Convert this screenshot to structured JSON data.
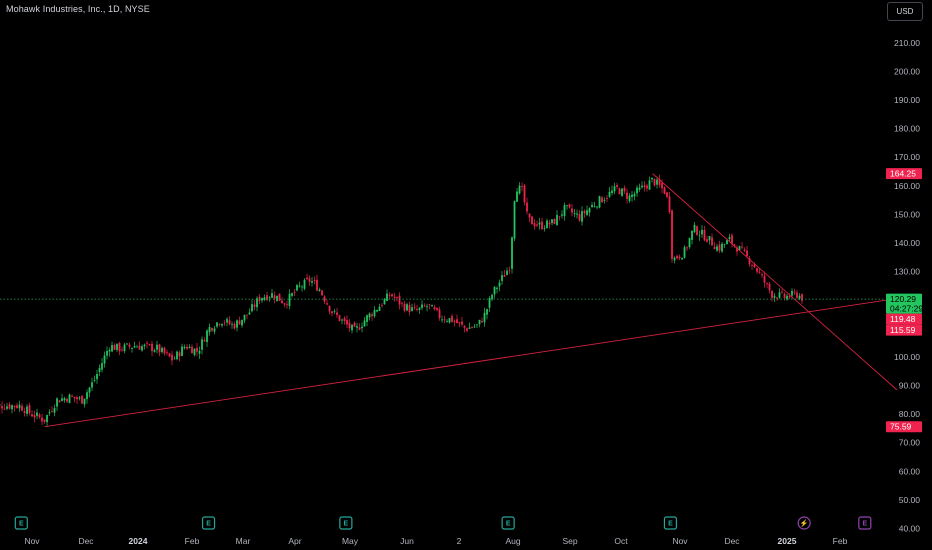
{
  "header": {
    "title": "Mohawk Industries, Inc., 1D, NYSE",
    "currency": "USD"
  },
  "colors": {
    "background": "#000000",
    "up": "#22c55e",
    "down": "#f0234f",
    "trendline": "#d62240",
    "price_line": "#1fae5a",
    "earnings_event": "#26a69a",
    "dividend_event": "#8e44ad"
  },
  "chart_data": {
    "type": "candlestick",
    "title": "Mohawk Industries, Inc., 1D, NYSE",
    "xlabel": "",
    "ylabel": "",
    "ylim": [
      40,
      215
    ],
    "grid": false,
    "y_ticks": [
      "210.00",
      "200.00",
      "190.00",
      "180.00",
      "170.00",
      "160.00",
      "150.00",
      "140.00",
      "130.00",
      "120.00",
      "110.00",
      "100.00",
      "90.00",
      "80.00",
      "70.00",
      "60.00",
      "50.00",
      "40.00"
    ],
    "x_ticks": [
      "Nov",
      "Dec",
      "2024",
      "Feb",
      "Mar",
      "Apr",
      "May",
      "Jun",
      "2",
      "Aug",
      "Sep",
      "Oct",
      "Nov",
      "Dec",
      "2025",
      "Feb"
    ],
    "approx_close_path": [
      [
        "2023-10-25",
        83
      ],
      [
        "2023-11-01",
        80
      ],
      [
        "2023-11-08",
        78
      ],
      [
        "2023-11-15",
        85
      ],
      [
        "2023-11-22",
        86
      ],
      [
        "2023-11-29",
        85
      ],
      [
        "2023-12-06",
        92
      ],
      [
        "2023-12-13",
        102
      ],
      [
        "2023-12-14",
        104
      ],
      [
        "2023-12-20",
        103
      ],
      [
        "2023-12-29",
        104
      ],
      [
        "2024-01-10",
        103
      ],
      [
        "2024-01-19",
        99
      ],
      [
        "2024-01-26",
        104
      ],
      [
        "2024-02-02",
        102
      ],
      [
        "2024-02-08",
        110
      ],
      [
        "2024-02-15",
        113
      ],
      [
        "2024-02-22",
        111
      ],
      [
        "2024-03-01",
        115
      ],
      [
        "2024-03-08",
        121
      ],
      [
        "2024-03-15",
        122
      ],
      [
        "2024-03-22",
        119
      ],
      [
        "2024-03-29",
        124
      ],
      [
        "2024-04-05",
        127
      ],
      [
        "2024-04-10",
        124
      ],
      [
        "2024-04-17",
        116
      ],
      [
        "2024-04-24",
        112
      ],
      [
        "2024-04-30",
        109
      ],
      [
        "2024-05-07",
        114
      ],
      [
        "2024-05-14",
        118
      ],
      [
        "2024-05-20",
        122
      ],
      [
        "2024-05-27",
        118
      ],
      [
        "2024-06-03",
        116
      ],
      [
        "2024-06-10",
        118
      ],
      [
        "2024-06-17",
        114
      ],
      [
        "2024-06-24",
        113
      ],
      [
        "2024-07-01",
        110
      ],
      [
        "2024-07-08",
        111
      ],
      [
        "2024-07-12",
        115
      ],
      [
        "2024-07-16",
        122
      ],
      [
        "2024-07-22",
        128
      ],
      [
        "2024-07-26",
        132
      ],
      [
        "2024-07-29",
        160
      ],
      [
        "2024-08-02",
        158
      ],
      [
        "2024-08-05",
        148
      ],
      [
        "2024-08-12",
        146
      ],
      [
        "2024-08-19",
        147
      ],
      [
        "2024-08-26",
        152
      ],
      [
        "2024-09-03",
        149
      ],
      [
        "2024-09-10",
        153
      ],
      [
        "2024-09-17",
        156
      ],
      [
        "2024-09-24",
        159
      ],
      [
        "2024-10-01",
        156
      ],
      [
        "2024-10-08",
        159
      ],
      [
        "2024-10-14",
        162
      ],
      [
        "2024-10-21",
        158
      ],
      [
        "2024-10-24",
        151
      ],
      [
        "2024-10-25",
        134
      ],
      [
        "2024-11-01",
        137
      ],
      [
        "2024-11-06",
        145
      ],
      [
        "2024-11-13",
        142
      ],
      [
        "2024-11-20",
        138
      ],
      [
        "2024-11-26",
        141
      ],
      [
        "2024-12-03",
        137
      ],
      [
        "2024-12-10",
        132
      ],
      [
        "2024-12-17",
        125
      ],
      [
        "2024-12-20",
        122
      ],
      [
        "2024-12-27",
        121
      ],
      [
        "2025-01-03",
        122
      ],
      [
        "2025-01-07",
        120.29
      ]
    ],
    "trendlines": [
      {
        "from": [
          "2023-11-08",
          75.59
        ],
        "to": [
          "2025-02-28",
          120.5
        ]
      },
      {
        "from": [
          "2024-10-14",
          164.25
        ],
        "to": [
          "2025-02-28",
          88.5
        ]
      }
    ],
    "price_tags": [
      {
        "label": "164.25",
        "value": 164.25,
        "kind": "level"
      },
      {
        "label": "120.29",
        "sub": "04:27:29",
        "value": 120.29,
        "kind": "last"
      },
      {
        "label": "119.48",
        "value": 119.48,
        "kind": "level"
      },
      {
        "label": "115.59",
        "value": 115.59,
        "kind": "level"
      },
      {
        "label": "75.59",
        "value": 75.59,
        "kind": "level"
      }
    ],
    "events": [
      {
        "date": "2023-10-26",
        "letter": "E",
        "kind": "earnings"
      },
      {
        "date": "2024-02-08",
        "letter": "E",
        "kind": "earnings"
      },
      {
        "date": "2024-04-25",
        "letter": "E",
        "kind": "earnings"
      },
      {
        "date": "2024-07-25",
        "letter": "E",
        "kind": "earnings"
      },
      {
        "date": "2024-10-24",
        "letter": "E",
        "kind": "earnings"
      },
      {
        "date": "2025-01-07",
        "letter": "⚡",
        "kind": "split"
      },
      {
        "date": "2025-02-10",
        "letter": "E",
        "kind": "dividend"
      }
    ]
  }
}
